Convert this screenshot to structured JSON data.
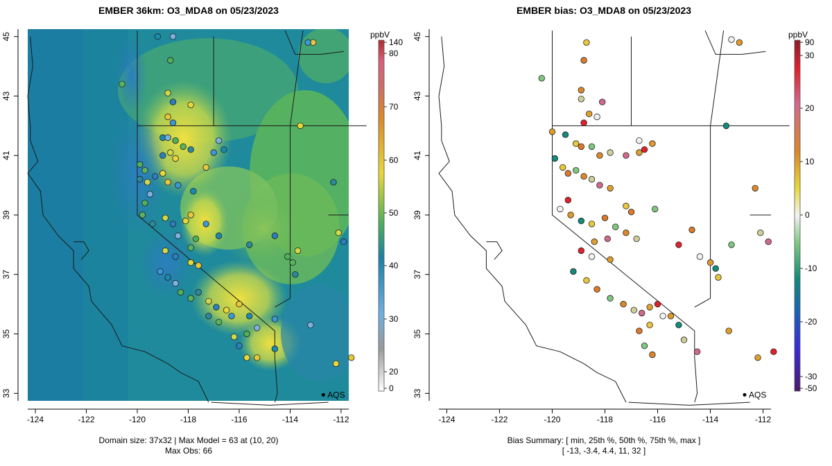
{
  "panels": {
    "left": {
      "title": "EMBER 36km: O3_MDA8 on 05/23/2023",
      "footer_line1": "Domain size: 37x32 | Max Model = 63 at (10, 20)",
      "footer_line2": "Max Obs: 66",
      "colorbar_unit": "ppbV",
      "colorbar_ticks": [
        "140",
        "80",
        "70",
        "60",
        "50",
        "40",
        "30",
        "20",
        "0"
      ],
      "aqs_label": "AQS"
    },
    "right": {
      "title": "EMBER bias: O3_MDA8 on 05/23/2023",
      "footer_line1": "Bias Summary: [ min, 25th %, 50th %, 75th %, max ]",
      "footer_line2": "[ -13,   -3.4,   4.4,   11,   32 ]",
      "colorbar_unit": "ppbV",
      "colorbar_ticks": [
        "90",
        "30",
        "20",
        "10",
        "0",
        "-10",
        "-20",
        "-30",
        "-50"
      ],
      "aqs_label": "AQS"
    }
  },
  "axes": {
    "x_ticks": [
      "-124",
      "-122",
      "-120",
      "-118",
      "-116",
      "-114",
      "-112"
    ],
    "y_ticks": [
      "33",
      "35",
      "37",
      "39",
      "41",
      "43",
      "45"
    ],
    "x_values": [
      -124,
      -122,
      -120,
      -118,
      -116,
      -114,
      -112
    ],
    "y_values": [
      33,
      35,
      37,
      39,
      41,
      43,
      45
    ],
    "xlim": [
      -124.3,
      -111.7
    ],
    "ylim": [
      32.75,
      45.25
    ]
  },
  "colors": {
    "ocean_fill": "#1f8a9c",
    "high_ozone": "#e6d93a",
    "mid_ozone": "#57b85a",
    "low_ozone": "#2a79b5"
  },
  "stations": {
    "left_obs": [
      [
        -118.8,
        43.1
      ],
      [
        -118.6,
        42.8
      ],
      [
        -117.9,
        42.7
      ],
      [
        -118.8,
        42.3
      ],
      [
        -118.6,
        42.1
      ],
      [
        -119.0,
        41.6
      ],
      [
        -118.8,
        41.6
      ],
      [
        -118.5,
        41.5
      ],
      [
        -118.2,
        41.3
      ],
      [
        -117.9,
        41.2
      ],
      [
        -118.7,
        41.1
      ],
      [
        -119.0,
        41.0
      ],
      [
        -118.5,
        40.9
      ],
      [
        -117.3,
        40.6
      ],
      [
        -117.0,
        41.1
      ],
      [
        -116.6,
        41.2
      ],
      [
        -116.8,
        41.5
      ],
      [
        -119.9,
        40.7
      ],
      [
        -119.7,
        40.5
      ],
      [
        -119.9,
        40.2
      ],
      [
        -119.6,
        40.1
      ],
      [
        -119.3,
        40.3
      ],
      [
        -119.0,
        40.4
      ],
      [
        -118.8,
        40.1
      ],
      [
        -118.4,
        40.0
      ],
      [
        -117.8,
        39.8
      ],
      [
        -119.5,
        39.7
      ],
      [
        -119.7,
        39.4
      ],
      [
        -119.8,
        39.0
      ],
      [
        -119.4,
        38.7
      ],
      [
        -118.9,
        38.9
      ],
      [
        -118.6,
        38.7
      ],
      [
        -118.1,
        38.8
      ],
      [
        -117.9,
        39.0
      ],
      [
        -117.3,
        38.7
      ],
      [
        -116.8,
        38.3
      ],
      [
        -118.4,
        38.3
      ],
      [
        -117.7,
        38.2
      ],
      [
        -117.9,
        37.9
      ],
      [
        -115.6,
        38.0
      ],
      [
        -118.9,
        37.8
      ],
      [
        -118.5,
        37.6
      ],
      [
        -117.9,
        37.4
      ],
      [
        -117.6,
        37.3
      ],
      [
        -119.1,
        37.1
      ],
      [
        -118.8,
        36.9
      ],
      [
        -118.5,
        36.7
      ],
      [
        -118.3,
        36.4
      ],
      [
        -117.9,
        36.2
      ],
      [
        -117.6,
        36.4
      ],
      [
        -117.2,
        36.1
      ],
      [
        -116.9,
        35.9
      ],
      [
        -116.5,
        35.8
      ],
      [
        -116.0,
        36.0
      ],
      [
        -116.3,
        35.6
      ],
      [
        -115.6,
        35.6
      ],
      [
        -115.3,
        35.2
      ],
      [
        -115.7,
        35.0
      ],
      [
        -116.8,
        35.4
      ],
      [
        -117.2,
        35.6
      ],
      [
        -116.2,
        34.9
      ],
      [
        -116.0,
        34.6
      ],
      [
        -115.7,
        34.2
      ],
      [
        -115.3,
        34.2
      ],
      [
        -114.6,
        35.5
      ],
      [
        -114.6,
        34.5
      ],
      [
        -113.2,
        35.3
      ],
      [
        -114.1,
        37.6
      ],
      [
        -113.9,
        37.4
      ],
      [
        -113.8,
        37.0
      ],
      [
        -113.7,
        37.8
      ],
      [
        -114.6,
        38.3
      ],
      [
        -113.6,
        42.0
      ],
      [
        -113.1,
        44.8
      ],
      [
        -113.3,
        44.8
      ],
      [
        -119.2,
        45.0
      ],
      [
        -118.6,
        45.0
      ],
      [
        -118.7,
        44.2
      ],
      [
        -120.6,
        43.4
      ],
      [
        -112.3,
        40.1
      ],
      [
        -112.1,
        38.4
      ],
      [
        -111.9,
        38.1
      ],
      [
        -112.2,
        34.0
      ],
      [
        -111.6,
        34.2
      ]
    ],
    "right_obs": [
      [
        -118.7,
        44.8
      ],
      [
        -118.8,
        44.2
      ],
      [
        -120.4,
        43.6
      ],
      [
        -118.9,
        43.2
      ],
      [
        -118.9,
        42.9
      ],
      [
        -118.1,
        42.8
      ],
      [
        -118.6,
        42.4
      ],
      [
        -118.8,
        42.1
      ],
      [
        -118.3,
        42.3
      ],
      [
        -120.0,
        41.8
      ],
      [
        -119.5,
        41.7
      ],
      [
        -119.1,
        41.4
      ],
      [
        -118.9,
        41.3
      ],
      [
        -118.5,
        41.3
      ],
      [
        -118.2,
        41.0
      ],
      [
        -117.8,
        41.1
      ],
      [
        -117.2,
        41.0
      ],
      [
        -116.7,
        41.1
      ],
      [
        -116.5,
        41.2
      ],
      [
        -116.7,
        41.5
      ],
      [
        -116.2,
        41.4
      ],
      [
        -119.9,
        40.9
      ],
      [
        -119.6,
        40.6
      ],
      [
        -119.4,
        40.4
      ],
      [
        -119.1,
        40.5
      ],
      [
        -118.8,
        40.3
      ],
      [
        -118.5,
        40.2
      ],
      [
        -118.2,
        40.0
      ],
      [
        -117.8,
        39.9
      ],
      [
        -119.4,
        39.5
      ],
      [
        -119.7,
        39.2
      ],
      [
        -119.3,
        39.0
      ],
      [
        -118.9,
        38.8
      ],
      [
        -118.5,
        38.7
      ],
      [
        -118.0,
        38.9
      ],
      [
        -117.6,
        38.6
      ],
      [
        -117.2,
        38.4
      ],
      [
        -116.8,
        38.2
      ],
      [
        -117.9,
        38.2
      ],
      [
        -118.4,
        38.1
      ],
      [
        -118.9,
        37.8
      ],
      [
        -118.5,
        37.6
      ],
      [
        -117.8,
        37.5
      ],
      [
        -119.2,
        37.1
      ],
      [
        -118.7,
        36.8
      ],
      [
        -118.3,
        36.5
      ],
      [
        -117.8,
        36.2
      ],
      [
        -117.3,
        36.0
      ],
      [
        -116.9,
        35.8
      ],
      [
        -116.6,
        35.7
      ],
      [
        -116.3,
        35.9
      ],
      [
        -116.0,
        36.0
      ],
      [
        -115.8,
        35.6
      ],
      [
        -115.5,
        35.6
      ],
      [
        -115.2,
        35.3
      ],
      [
        -116.3,
        35.3
      ],
      [
        -116.7,
        35.1
      ],
      [
        -116.5,
        34.6
      ],
      [
        -116.2,
        34.3
      ],
      [
        -115.0,
        34.8
      ],
      [
        -114.5,
        34.4
      ],
      [
        -113.3,
        35.1
      ],
      [
        -115.2,
        38.0
      ],
      [
        -114.4,
        37.6
      ],
      [
        -114.0,
        37.4
      ],
      [
        -113.8,
        37.2
      ],
      [
        -113.7,
        36.9
      ],
      [
        -114.7,
        38.5
      ],
      [
        -113.2,
        38.0
      ],
      [
        -112.3,
        39.9
      ],
      [
        -112.1,
        38.4
      ],
      [
        -111.8,
        38.1
      ],
      [
        -112.2,
        34.2
      ],
      [
        -111.6,
        34.4
      ],
      [
        -113.2,
        44.9
      ],
      [
        -112.9,
        44.8
      ],
      [
        -113.4,
        42.0
      ],
      [
        -117.2,
        39.3
      ],
      [
        -117.0,
        39.1
      ],
      [
        -116.1,
        39.2
      ]
    ]
  },
  "chart_data": [
    {
      "type": "heatmap",
      "title": "EMBER 36km: O3_MDA8 on 05/23/2023",
      "xlabel": "",
      "ylabel": "",
      "xlim": [
        -124.3,
        -111.7
      ],
      "ylim": [
        32.75,
        45.25
      ],
      "colorbar_unit": "ppbV",
      "colorbar_ticks": [
        140,
        80,
        70,
        60,
        50,
        40,
        30,
        20,
        0
      ],
      "domain": "37x32",
      "max_model": 63,
      "max_model_at": [
        10,
        20
      ],
      "max_obs": 66
    },
    {
      "type": "scatter",
      "title": "EMBER bias: O3_MDA8 on 05/23/2023",
      "xlabel": "",
      "ylabel": "",
      "xlim": [
        -124.3,
        -111.7
      ],
      "ylim": [
        32.75,
        45.25
      ],
      "colorbar_unit": "ppbV",
      "colorbar_ticks": [
        90,
        30,
        20,
        10,
        0,
        -10,
        -20,
        -30,
        -50
      ],
      "bias_summary": {
        "min": -13,
        "p25": -3.4,
        "p50": 4.4,
        "p75": 11,
        "max": 32
      }
    }
  ]
}
